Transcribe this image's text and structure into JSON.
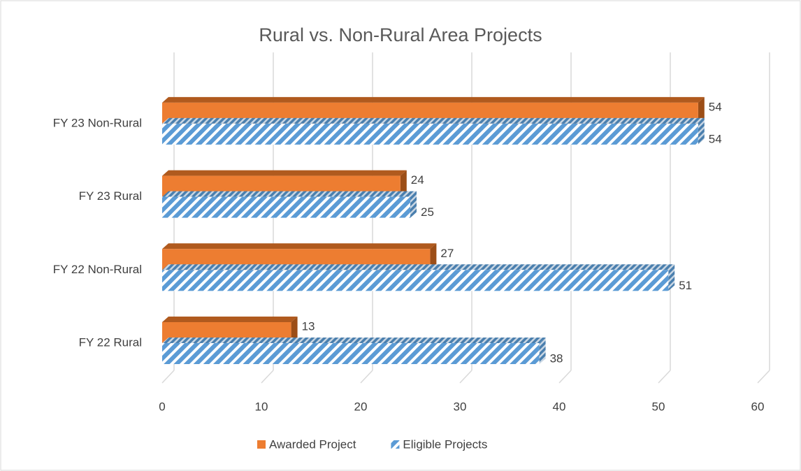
{
  "chart_data": {
    "type": "bar",
    "orientation": "horizontal",
    "title": "Rural vs. Non-Rural Area Projects",
    "categories": [
      "FY 22 Rural",
      "FY 22 Non-Rural",
      "FY 23 Rural",
      "FY 23 Non-Rural"
    ],
    "series": [
      {
        "name": "Awarded Project",
        "color": "#ed7d31",
        "values": [
          13,
          27,
          24,
          54
        ]
      },
      {
        "name": "Eligible Projects",
        "color": "#5b9bd5",
        "pattern": "hatch",
        "values": [
          38,
          51,
          25,
          54
        ]
      }
    ],
    "xlim": [
      0,
      60
    ],
    "xticks": [
      0,
      10,
      20,
      30,
      40,
      50,
      60
    ],
    "grid": true,
    "legend": "bottom"
  }
}
